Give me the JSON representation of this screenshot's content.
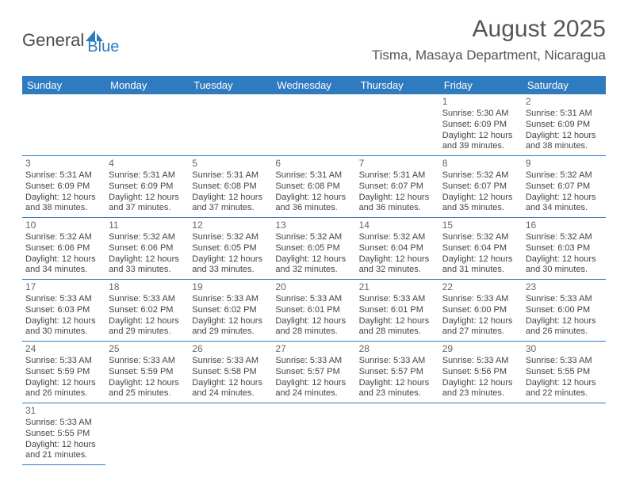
{
  "brand": {
    "name1": "General",
    "name2": "Blue"
  },
  "title": "August 2025",
  "location": "Tisma, Masaya Department, Nicaragua",
  "colors": {
    "accent": "#2f7bbf",
    "text": "#444444",
    "heading": "#555555",
    "bg": "#ffffff"
  },
  "day_headers": [
    "Sunday",
    "Monday",
    "Tuesday",
    "Wednesday",
    "Thursday",
    "Friday",
    "Saturday"
  ],
  "weeks": [
    [
      null,
      null,
      null,
      null,
      null,
      {
        "n": "1",
        "sr": "Sunrise: 5:30 AM",
        "ss": "Sunset: 6:09 PM",
        "d1": "Daylight: 12 hours",
        "d2": "and 39 minutes."
      },
      {
        "n": "2",
        "sr": "Sunrise: 5:31 AM",
        "ss": "Sunset: 6:09 PM",
        "d1": "Daylight: 12 hours",
        "d2": "and 38 minutes."
      }
    ],
    [
      {
        "n": "3",
        "sr": "Sunrise: 5:31 AM",
        "ss": "Sunset: 6:09 PM",
        "d1": "Daylight: 12 hours",
        "d2": "and 38 minutes."
      },
      {
        "n": "4",
        "sr": "Sunrise: 5:31 AM",
        "ss": "Sunset: 6:09 PM",
        "d1": "Daylight: 12 hours",
        "d2": "and 37 minutes."
      },
      {
        "n": "5",
        "sr": "Sunrise: 5:31 AM",
        "ss": "Sunset: 6:08 PM",
        "d1": "Daylight: 12 hours",
        "d2": "and 37 minutes."
      },
      {
        "n": "6",
        "sr": "Sunrise: 5:31 AM",
        "ss": "Sunset: 6:08 PM",
        "d1": "Daylight: 12 hours",
        "d2": "and 36 minutes."
      },
      {
        "n": "7",
        "sr": "Sunrise: 5:31 AM",
        "ss": "Sunset: 6:07 PM",
        "d1": "Daylight: 12 hours",
        "d2": "and 36 minutes."
      },
      {
        "n": "8",
        "sr": "Sunrise: 5:32 AM",
        "ss": "Sunset: 6:07 PM",
        "d1": "Daylight: 12 hours",
        "d2": "and 35 minutes."
      },
      {
        "n": "9",
        "sr": "Sunrise: 5:32 AM",
        "ss": "Sunset: 6:07 PM",
        "d1": "Daylight: 12 hours",
        "d2": "and 34 minutes."
      }
    ],
    [
      {
        "n": "10",
        "sr": "Sunrise: 5:32 AM",
        "ss": "Sunset: 6:06 PM",
        "d1": "Daylight: 12 hours",
        "d2": "and 34 minutes."
      },
      {
        "n": "11",
        "sr": "Sunrise: 5:32 AM",
        "ss": "Sunset: 6:06 PM",
        "d1": "Daylight: 12 hours",
        "d2": "and 33 minutes."
      },
      {
        "n": "12",
        "sr": "Sunrise: 5:32 AM",
        "ss": "Sunset: 6:05 PM",
        "d1": "Daylight: 12 hours",
        "d2": "and 33 minutes."
      },
      {
        "n": "13",
        "sr": "Sunrise: 5:32 AM",
        "ss": "Sunset: 6:05 PM",
        "d1": "Daylight: 12 hours",
        "d2": "and 32 minutes."
      },
      {
        "n": "14",
        "sr": "Sunrise: 5:32 AM",
        "ss": "Sunset: 6:04 PM",
        "d1": "Daylight: 12 hours",
        "d2": "and 32 minutes."
      },
      {
        "n": "15",
        "sr": "Sunrise: 5:32 AM",
        "ss": "Sunset: 6:04 PM",
        "d1": "Daylight: 12 hours",
        "d2": "and 31 minutes."
      },
      {
        "n": "16",
        "sr": "Sunrise: 5:32 AM",
        "ss": "Sunset: 6:03 PM",
        "d1": "Daylight: 12 hours",
        "d2": "and 30 minutes."
      }
    ],
    [
      {
        "n": "17",
        "sr": "Sunrise: 5:33 AM",
        "ss": "Sunset: 6:03 PM",
        "d1": "Daylight: 12 hours",
        "d2": "and 30 minutes."
      },
      {
        "n": "18",
        "sr": "Sunrise: 5:33 AM",
        "ss": "Sunset: 6:02 PM",
        "d1": "Daylight: 12 hours",
        "d2": "and 29 minutes."
      },
      {
        "n": "19",
        "sr": "Sunrise: 5:33 AM",
        "ss": "Sunset: 6:02 PM",
        "d1": "Daylight: 12 hours",
        "d2": "and 29 minutes."
      },
      {
        "n": "20",
        "sr": "Sunrise: 5:33 AM",
        "ss": "Sunset: 6:01 PM",
        "d1": "Daylight: 12 hours",
        "d2": "and 28 minutes."
      },
      {
        "n": "21",
        "sr": "Sunrise: 5:33 AM",
        "ss": "Sunset: 6:01 PM",
        "d1": "Daylight: 12 hours",
        "d2": "and 28 minutes."
      },
      {
        "n": "22",
        "sr": "Sunrise: 5:33 AM",
        "ss": "Sunset: 6:00 PM",
        "d1": "Daylight: 12 hours",
        "d2": "and 27 minutes."
      },
      {
        "n": "23",
        "sr": "Sunrise: 5:33 AM",
        "ss": "Sunset: 6:00 PM",
        "d1": "Daylight: 12 hours",
        "d2": "and 26 minutes."
      }
    ],
    [
      {
        "n": "24",
        "sr": "Sunrise: 5:33 AM",
        "ss": "Sunset: 5:59 PM",
        "d1": "Daylight: 12 hours",
        "d2": "and 26 minutes."
      },
      {
        "n": "25",
        "sr": "Sunrise: 5:33 AM",
        "ss": "Sunset: 5:59 PM",
        "d1": "Daylight: 12 hours",
        "d2": "and 25 minutes."
      },
      {
        "n": "26",
        "sr": "Sunrise: 5:33 AM",
        "ss": "Sunset: 5:58 PM",
        "d1": "Daylight: 12 hours",
        "d2": "and 24 minutes."
      },
      {
        "n": "27",
        "sr": "Sunrise: 5:33 AM",
        "ss": "Sunset: 5:57 PM",
        "d1": "Daylight: 12 hours",
        "d2": "and 24 minutes."
      },
      {
        "n": "28",
        "sr": "Sunrise: 5:33 AM",
        "ss": "Sunset: 5:57 PM",
        "d1": "Daylight: 12 hours",
        "d2": "and 23 minutes."
      },
      {
        "n": "29",
        "sr": "Sunrise: 5:33 AM",
        "ss": "Sunset: 5:56 PM",
        "d1": "Daylight: 12 hours",
        "d2": "and 23 minutes."
      },
      {
        "n": "30",
        "sr": "Sunrise: 5:33 AM",
        "ss": "Sunset: 5:55 PM",
        "d1": "Daylight: 12 hours",
        "d2": "and 22 minutes."
      }
    ],
    [
      {
        "n": "31",
        "sr": "Sunrise: 5:33 AM",
        "ss": "Sunset: 5:55 PM",
        "d1": "Daylight: 12 hours",
        "d2": "and 21 minutes."
      },
      null,
      null,
      null,
      null,
      null,
      null
    ]
  ]
}
